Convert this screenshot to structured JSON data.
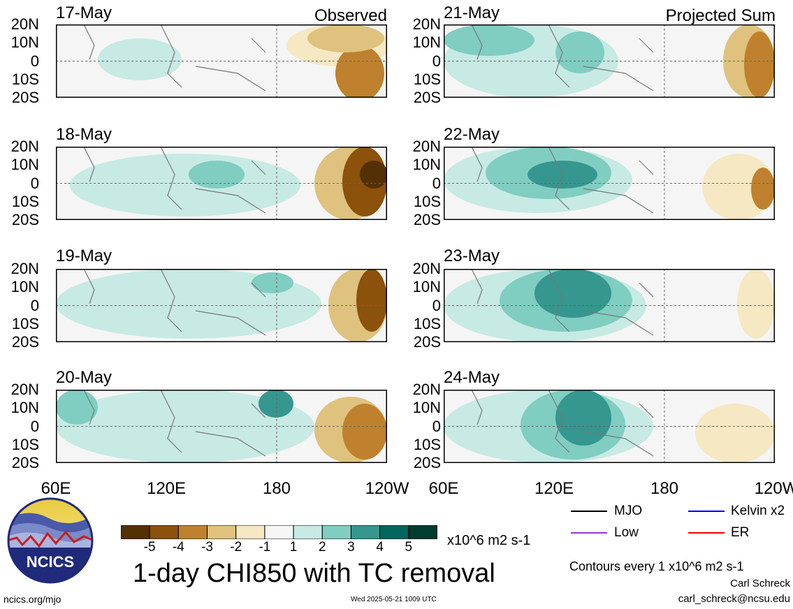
{
  "panels_left": [
    {
      "date": "17-May",
      "title": "Observed"
    },
    {
      "date": "18-May",
      "title": ""
    },
    {
      "date": "19-May",
      "title": ""
    },
    {
      "date": "20-May",
      "title": ""
    }
  ],
  "panels_right": [
    {
      "date": "21-May",
      "title": "Projected Sum"
    },
    {
      "date": "22-May",
      "title": ""
    },
    {
      "date": "23-May",
      "title": ""
    },
    {
      "date": "24-May",
      "title": ""
    }
  ],
  "lat_labels": [
    "20N",
    "10N",
    "0",
    "10S",
    "20S"
  ],
  "lon_labels": [
    "60E",
    "120E",
    "180",
    "120W"
  ],
  "colorbar": {
    "labels": [
      "-5",
      "-4",
      "-3",
      "-2",
      "-1",
      "1",
      "2",
      "3",
      "4",
      "5"
    ],
    "colors": [
      "#543005",
      "#8c510a",
      "#bf812d",
      "#dfc27d",
      "#f6e8c3",
      "#f5f5f5",
      "#c7eae5",
      "#80cdc1",
      "#35978f",
      "#01665e",
      "#003c30"
    ],
    "units": "x10^6 m2 s-1"
  },
  "title": "1-day CHI850 with TC removal",
  "legend": [
    {
      "label": "MJO",
      "color": "#000000"
    },
    {
      "label": "Kelvin x2",
      "color": "#0000ff"
    },
    {
      "label": "Low",
      "color": "#9933cc"
    },
    {
      "label": "ER",
      "color": "#ff0000"
    }
  ],
  "contour_note": "Contours every 1 x10^6 m2 s-1",
  "author": "Carl Schreck",
  "email": "carl_schreck@ncsu.edu",
  "site": "ncics.org/mjo",
  "timestamp": "Wed 2025-05-21 1009 UTC",
  "logo_text": "NCICS"
}
